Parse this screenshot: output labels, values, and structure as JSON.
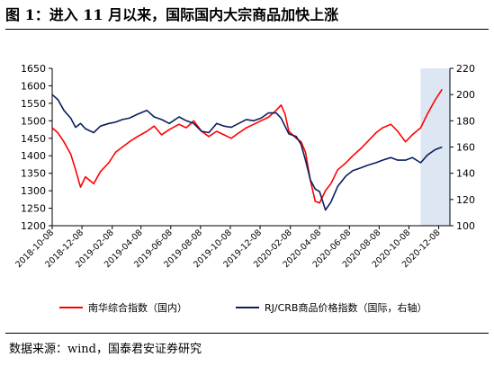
{
  "header": {
    "title": "图 1：进入 11 月以来，国际国内大宗商品加快上涨"
  },
  "footer": {
    "source": "数据来源：wind，国泰君安证券研究"
  },
  "chart_data": {
    "type": "line",
    "title": "",
    "x_labels": [
      "2018-10-08",
      "2018-12-08",
      "2019-02-08",
      "2019-04-08",
      "2019-06-08",
      "2019-08-08",
      "2019-10-08",
      "2019-12-08",
      "2020-02-08",
      "2020-04-08",
      "2020-06-08",
      "2020-08-08",
      "2020-10-08",
      "2020-12-08"
    ],
    "x_range": [
      "2018-10-08",
      "2020-12-31"
    ],
    "y_left": {
      "range": [
        1200,
        1650
      ],
      "ticks": [
        1200,
        1250,
        1300,
        1350,
        1400,
        1450,
        1500,
        1550,
        1600,
        1650
      ]
    },
    "y_right": {
      "range": [
        100,
        220
      ],
      "ticks": [
        100,
        120,
        140,
        160,
        180,
        200,
        220
      ]
    },
    "highlight_range": [
      "2020-11-01",
      "2020-12-31"
    ],
    "highlight_color": "#dde6f3",
    "series": [
      {
        "name": "南华综合指数（国内）",
        "axis": "left",
        "color": "#ff0000",
        "points": [
          [
            "2018-10-08",
            1480
          ],
          [
            "2018-10-20",
            1465
          ],
          [
            "2018-11-01",
            1440
          ],
          [
            "2018-11-15",
            1405
          ],
          [
            "2018-11-25",
            1360
          ],
          [
            "2018-12-05",
            1310
          ],
          [
            "2018-12-15",
            1340
          ],
          [
            "2019-01-01",
            1320
          ],
          [
            "2019-01-15",
            1355
          ],
          [
            "2019-02-01",
            1380
          ],
          [
            "2019-02-15",
            1410
          ],
          [
            "2019-03-01",
            1425
          ],
          [
            "2019-03-15",
            1440
          ],
          [
            "2019-04-01",
            1455
          ],
          [
            "2019-04-20",
            1470
          ],
          [
            "2019-05-05",
            1485
          ],
          [
            "2019-05-20",
            1460
          ],
          [
            "2019-06-05",
            1475
          ],
          [
            "2019-06-25",
            1490
          ],
          [
            "2019-07-10",
            1480
          ],
          [
            "2019-07-25",
            1500
          ],
          [
            "2019-08-10",
            1470
          ],
          [
            "2019-08-25",
            1455
          ],
          [
            "2019-09-10",
            1470
          ],
          [
            "2019-09-25",
            1460
          ],
          [
            "2019-10-10",
            1450
          ],
          [
            "2019-10-25",
            1465
          ],
          [
            "2019-11-10",
            1480
          ],
          [
            "2019-11-25",
            1490
          ],
          [
            "2019-12-10",
            1500
          ],
          [
            "2019-12-25",
            1510
          ],
          [
            "2020-01-10",
            1530
          ],
          [
            "2020-01-20",
            1545
          ],
          [
            "2020-01-28",
            1520
          ],
          [
            "2020-02-05",
            1470
          ],
          [
            "2020-02-20",
            1450
          ],
          [
            "2020-03-01",
            1440
          ],
          [
            "2020-03-10",
            1410
          ],
          [
            "2020-03-20",
            1330
          ],
          [
            "2020-03-30",
            1270
          ],
          [
            "2020-04-08",
            1265
          ],
          [
            "2020-04-20",
            1300
          ],
          [
            "2020-05-01",
            1320
          ],
          [
            "2020-05-15",
            1360
          ],
          [
            "2020-06-01",
            1380
          ],
          [
            "2020-06-15",
            1400
          ],
          [
            "2020-07-01",
            1420
          ],
          [
            "2020-07-15",
            1440
          ],
          [
            "2020-08-01",
            1465
          ],
          [
            "2020-08-15",
            1480
          ],
          [
            "2020-09-01",
            1490
          ],
          [
            "2020-09-15",
            1470
          ],
          [
            "2020-10-01",
            1440
          ],
          [
            "2020-10-15",
            1460
          ],
          [
            "2020-11-01",
            1480
          ],
          [
            "2020-11-15",
            1520
          ],
          [
            "2020-12-01",
            1560
          ],
          [
            "2020-12-15",
            1590
          ]
        ]
      },
      {
        "name": "RJ/CRB商品价格指数（国际，右轴）",
        "axis": "right",
        "color": "#0a1f5c",
        "points": [
          [
            "2018-10-08",
            200
          ],
          [
            "2018-10-20",
            196
          ],
          [
            "2018-11-01",
            188
          ],
          [
            "2018-11-15",
            182
          ],
          [
            "2018-11-25",
            175
          ],
          [
            "2018-12-05",
            178
          ],
          [
            "2018-12-15",
            174
          ],
          [
            "2019-01-01",
            171
          ],
          [
            "2019-01-15",
            176
          ],
          [
            "2019-02-01",
            178
          ],
          [
            "2019-02-15",
            179
          ],
          [
            "2019-03-01",
            181
          ],
          [
            "2019-03-15",
            182
          ],
          [
            "2019-04-01",
            185
          ],
          [
            "2019-04-20",
            188
          ],
          [
            "2019-05-05",
            183
          ],
          [
            "2019-05-20",
            181
          ],
          [
            "2019-06-05",
            178
          ],
          [
            "2019-06-25",
            183
          ],
          [
            "2019-07-10",
            180
          ],
          [
            "2019-07-25",
            178
          ],
          [
            "2019-08-10",
            172
          ],
          [
            "2019-08-25",
            171
          ],
          [
            "2019-09-10",
            178
          ],
          [
            "2019-09-25",
            176
          ],
          [
            "2019-10-10",
            175
          ],
          [
            "2019-10-25",
            178
          ],
          [
            "2019-11-10",
            181
          ],
          [
            "2019-11-25",
            180
          ],
          [
            "2019-12-10",
            182
          ],
          [
            "2019-12-25",
            186
          ],
          [
            "2020-01-10",
            186
          ],
          [
            "2020-01-20",
            182
          ],
          [
            "2020-01-28",
            176
          ],
          [
            "2020-02-05",
            170
          ],
          [
            "2020-02-20",
            168
          ],
          [
            "2020-03-01",
            162
          ],
          [
            "2020-03-10",
            150
          ],
          [
            "2020-03-20",
            135
          ],
          [
            "2020-03-30",
            128
          ],
          [
            "2020-04-08",
            126
          ],
          [
            "2020-04-20",
            112
          ],
          [
            "2020-05-01",
            118
          ],
          [
            "2020-05-15",
            130
          ],
          [
            "2020-06-01",
            138
          ],
          [
            "2020-06-15",
            142
          ],
          [
            "2020-07-01",
            144
          ],
          [
            "2020-07-15",
            146
          ],
          [
            "2020-08-01",
            148
          ],
          [
            "2020-08-15",
            150
          ],
          [
            "2020-09-01",
            152
          ],
          [
            "2020-09-15",
            150
          ],
          [
            "2020-10-01",
            150
          ],
          [
            "2020-10-15",
            152
          ],
          [
            "2020-11-01",
            148
          ],
          [
            "2020-11-15",
            154
          ],
          [
            "2020-12-01",
            158
          ],
          [
            "2020-12-15",
            160
          ]
        ]
      }
    ],
    "legend_position": "bottom"
  }
}
